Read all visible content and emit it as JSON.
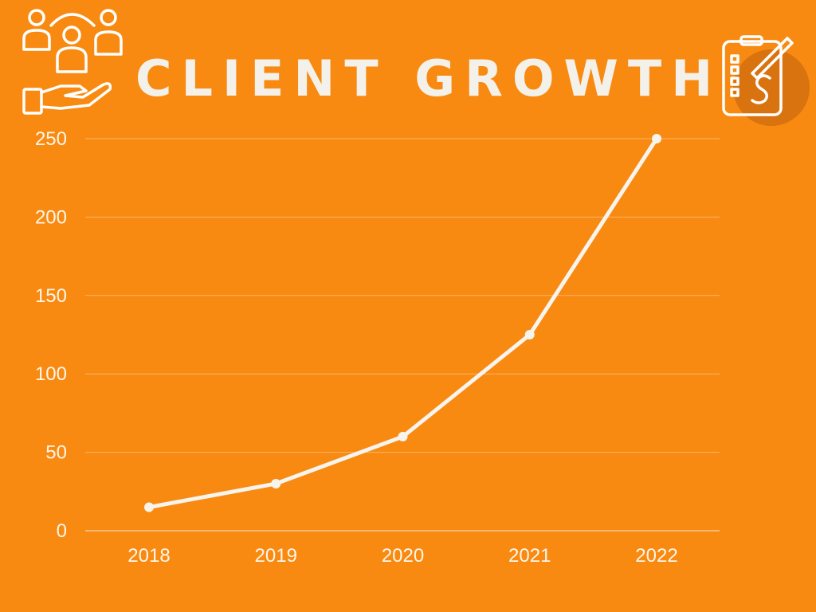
{
  "header": {
    "title": "CLIENT GROWTH",
    "left_icon": "clients-hand-icon",
    "right_icon": "checklist-dollar-icon"
  },
  "colors": {
    "background": "#F88A11",
    "line": "#F7F4EE",
    "text": "#FFF6EA",
    "grid": "#FBB467",
    "accent_circle": "#D9730F"
  },
  "chart_data": {
    "type": "line",
    "title": "CLIENT GROWTH",
    "categories": [
      "2018",
      "2019",
      "2020",
      "2021",
      "2022"
    ],
    "series": [
      {
        "values": [
          15,
          30,
          60,
          125,
          250
        ]
      }
    ],
    "yticks": [
      0,
      50,
      100,
      150,
      200,
      250
    ],
    "ylim": [
      0,
      250
    ],
    "xlabel": "",
    "ylabel": "",
    "grid": true,
    "legend": "none"
  }
}
